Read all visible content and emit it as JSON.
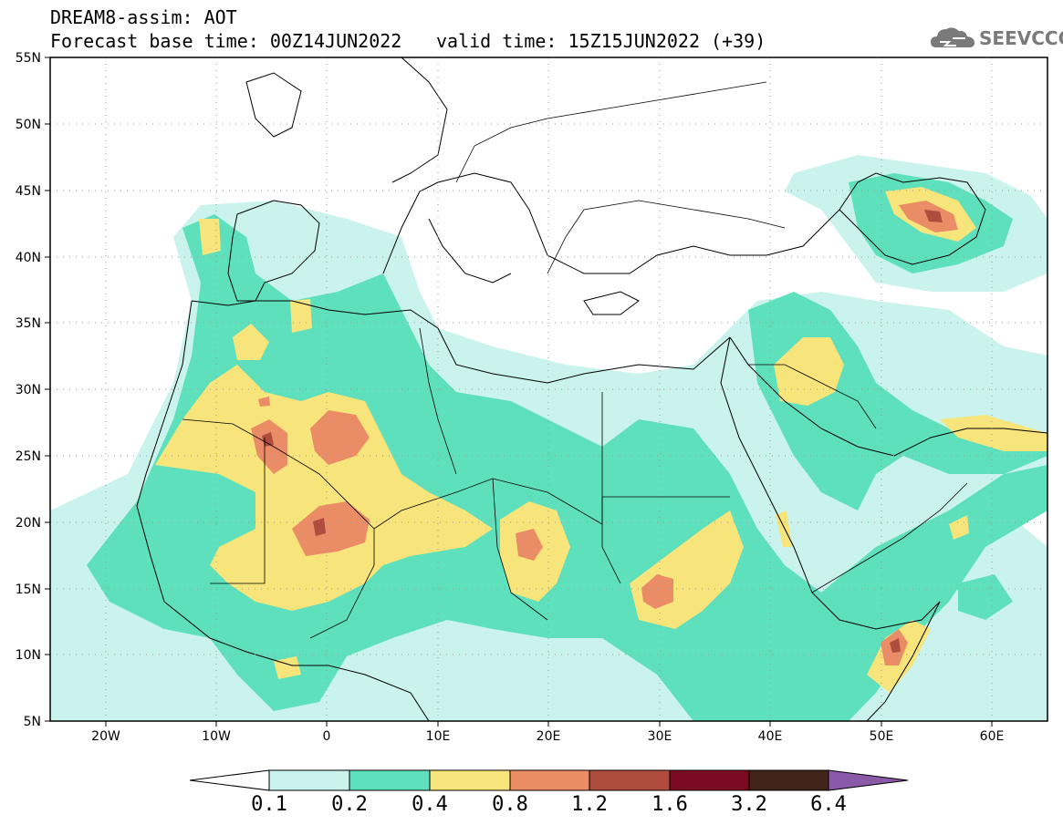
{
  "header": {
    "model_line": "DREAM8-assim: AOT",
    "base_time": "Forecast base time: 00Z14JUN2022",
    "valid_time": "valid time: 15Z15JUN2022 (+39)",
    "logo_text": "SEEVCCC"
  },
  "axes": {
    "lat_labels": [
      "55N",
      "50N",
      "45N",
      "40N",
      "35N",
      "30N",
      "25N",
      "20N",
      "15N",
      "10N",
      "5N"
    ],
    "lon_labels": [
      "20W",
      "10W",
      "0",
      "10E",
      "20E",
      "30E",
      "40E",
      "50E",
      "60E"
    ]
  },
  "colorbar": {
    "thresholds": [
      "0.1",
      "0.2",
      "0.4",
      "0.8",
      "1.2",
      "1.6",
      "3.2",
      "6.4"
    ],
    "colors": [
      "#c9f3ec",
      "#5fe0bd",
      "#f7e47a",
      "#ea8c66",
      "#b04c3e",
      "#7c0a22",
      "#43241a"
    ],
    "below_color": "#ffffff",
    "above_color": "#8a5aa8"
  }
}
